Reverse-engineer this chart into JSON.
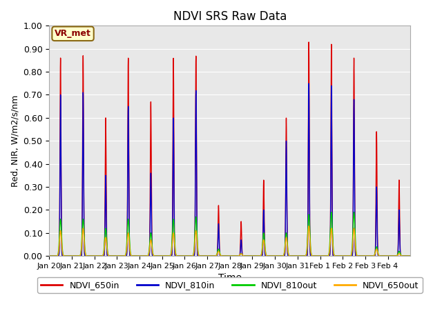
{
  "title": "NDVI SRS Raw Data",
  "xlabel": "Time",
  "ylabel": "Red, NIR, W/m2/s/nm",
  "ylim": [
    0.0,
    1.0
  ],
  "yticks": [
    0.0,
    0.1,
    0.2,
    0.3,
    0.4,
    0.5,
    0.6,
    0.7,
    0.8,
    0.9,
    1.0
  ],
  "annotation": "VR_met",
  "bg_color": "#e8e8e8",
  "colors": {
    "NDVI_650in": "#dd0000",
    "NDVI_810in": "#0000cc",
    "NDVI_810out": "#00cc00",
    "NDVI_650out": "#ffaa00"
  },
  "line_width": 1.0,
  "x_tick_labels": [
    "Jan 20",
    "Jan 21",
    "Jan 22",
    "Jan 23",
    "Jan 24",
    "Jan 25",
    "Jan 26",
    "Jan 27",
    "Jan 28",
    "Jan 29",
    "Jan 30",
    "Jan 31",
    "Feb 1",
    "Feb 2",
    "Feb 3",
    "Feb 4"
  ],
  "figsize": [
    6.4,
    4.8
  ],
  "dpi": 100,
  "peaks_650in": [
    0.86,
    0.87,
    0.6,
    0.86,
    0.67,
    0.86,
    0.87,
    0.22,
    0.15,
    0.33,
    0.6,
    0.93,
    0.92,
    0.86,
    0.54,
    0.33
  ],
  "peaks_810in": [
    0.7,
    0.71,
    0.35,
    0.65,
    0.36,
    0.6,
    0.72,
    0.14,
    0.07,
    0.2,
    0.5,
    0.75,
    0.74,
    0.68,
    0.3,
    0.2
  ],
  "peaks_810out": [
    0.16,
    0.16,
    0.12,
    0.16,
    0.1,
    0.16,
    0.17,
    0.03,
    0.01,
    0.1,
    0.1,
    0.18,
    0.19,
    0.19,
    0.04,
    0.02
  ],
  "peaks_650out": [
    0.11,
    0.12,
    0.08,
    0.1,
    0.07,
    0.1,
    0.11,
    0.02,
    0.01,
    0.07,
    0.08,
    0.13,
    0.12,
    0.12,
    0.03,
    0.01
  ]
}
